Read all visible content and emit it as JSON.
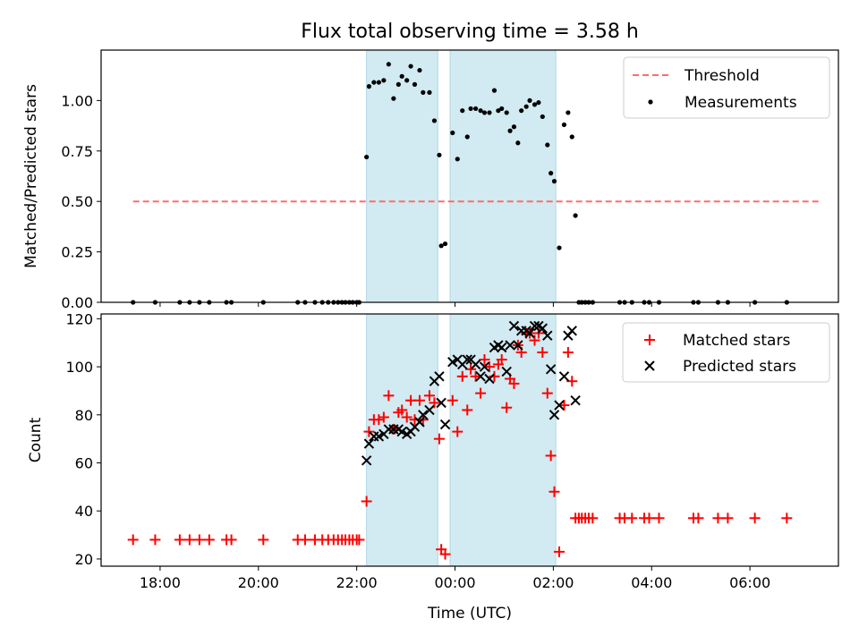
{
  "chart_data": {
    "title": "Flux total observing time = 3.58 h",
    "x_unit": "hours (UTC, 24 = 00:00 next day)",
    "xlim": [
      16.8,
      31.8
    ],
    "x_ticks": [
      {
        "value": 18,
        "label": "18:00"
      },
      {
        "value": 20,
        "label": "20:00"
      },
      {
        "value": 22,
        "label": "22:00"
      },
      {
        "value": 24,
        "label": "00:00"
      },
      {
        "value": 26,
        "label": "02:00"
      },
      {
        "value": 28,
        "label": "04:00"
      },
      {
        "value": 30,
        "label": "06:00"
      }
    ],
    "xlabel": "Time (UTC)",
    "shaded_intervals": [
      [
        22.2,
        23.65
      ],
      [
        23.9,
        26.05
      ]
    ],
    "shade_color": "#add8e6",
    "panels": [
      {
        "type": "scatter",
        "ylabel": "Matched/Predicted stars",
        "ylim": [
          0,
          1.25
        ],
        "y_ticks": [
          {
            "value": 0,
            "label": "0.00"
          },
          {
            "value": 0.25,
            "label": "0.25"
          },
          {
            "value": 0.5,
            "label": "0.50"
          },
          {
            "value": 0.75,
            "label": "0.75"
          },
          {
            "value": 1.0,
            "label": "1.00"
          }
        ],
        "legend_position": "top-right",
        "threshold": {
          "name": "Threshold",
          "value": 0.5,
          "x_range": [
            17.45,
            31.4
          ],
          "color": "#ff6b6b"
        },
        "series": [
          {
            "name": "Measurements",
            "color": "#000000",
            "marker": "dot",
            "points": [
              [
                17.45,
                0
              ],
              [
                17.9,
                0
              ],
              [
                18.4,
                0
              ],
              [
                18.6,
                0
              ],
              [
                18.8,
                0
              ],
              [
                19.0,
                0
              ],
              [
                19.35,
                0
              ],
              [
                19.45,
                0
              ],
              [
                20.1,
                0
              ],
              [
                20.8,
                0
              ],
              [
                20.95,
                0
              ],
              [
                21.15,
                0
              ],
              [
                21.3,
                0
              ],
              [
                21.42,
                0
              ],
              [
                21.53,
                0
              ],
              [
                21.62,
                0
              ],
              [
                21.7,
                0
              ],
              [
                21.77,
                0
              ],
              [
                21.85,
                0
              ],
              [
                21.92,
                0
              ],
              [
                22.0,
                0
              ],
              [
                22.05,
                0
              ],
              [
                22.2,
                0.72
              ],
              [
                22.25,
                1.07
              ],
              [
                22.35,
                1.09
              ],
              [
                22.45,
                1.09
              ],
              [
                22.55,
                1.1
              ],
              [
                22.65,
                1.18
              ],
              [
                22.75,
                1.01
              ],
              [
                22.85,
                1.08
              ],
              [
                22.92,
                1.12
              ],
              [
                23.02,
                1.1
              ],
              [
                23.1,
                1.17
              ],
              [
                23.18,
                1.08
              ],
              [
                23.28,
                1.15
              ],
              [
                23.35,
                1.04
              ],
              [
                23.48,
                1.04
              ],
              [
                23.58,
                0.9
              ],
              [
                23.68,
                0.73
              ],
              [
                23.72,
                0.28
              ],
              [
                23.8,
                0.29
              ],
              [
                23.95,
                0.84
              ],
              [
                24.05,
                0.71
              ],
              [
                24.15,
                0.95
              ],
              [
                24.25,
                0.82
              ],
              [
                24.32,
                0.96
              ],
              [
                24.42,
                0.96
              ],
              [
                24.52,
                0.95
              ],
              [
                24.6,
                0.94
              ],
              [
                24.7,
                0.94
              ],
              [
                24.8,
                1.05
              ],
              [
                24.88,
                0.95
              ],
              [
                24.95,
                0.96
              ],
              [
                25.05,
                0.94
              ],
              [
                25.12,
                0.85
              ],
              [
                25.2,
                0.87
              ],
              [
                25.28,
                0.79
              ],
              [
                25.35,
                0.95
              ],
              [
                25.45,
                0.97
              ],
              [
                25.52,
                1.0
              ],
              [
                25.62,
                0.98
              ],
              [
                25.7,
                0.99
              ],
              [
                25.78,
                0.92
              ],
              [
                25.88,
                0.78
              ],
              [
                25.95,
                0.64
              ],
              [
                26.02,
                0.6
              ],
              [
                26.12,
                0.27
              ],
              [
                26.22,
                0.88
              ],
              [
                26.3,
                0.94
              ],
              [
                26.38,
                0.82
              ],
              [
                26.45,
                0.43
              ],
              [
                26.52,
                0
              ],
              [
                26.58,
                0
              ],
              [
                26.65,
                0
              ],
              [
                26.72,
                0
              ],
              [
                26.8,
                0
              ],
              [
                27.35,
                0
              ],
              [
                27.45,
                0
              ],
              [
                27.6,
                0
              ],
              [
                27.85,
                0
              ],
              [
                27.95,
                0
              ],
              [
                28.15,
                0
              ],
              [
                28.85,
                0
              ],
              [
                28.95,
                0
              ],
              [
                29.35,
                0
              ],
              [
                29.55,
                0
              ],
              [
                30.1,
                0
              ],
              [
                30.75,
                0
              ]
            ]
          }
        ]
      },
      {
        "type": "scatter",
        "ylabel": "Count",
        "ylim": [
          17,
          122
        ],
        "y_ticks": [
          {
            "value": 20,
            "label": "20"
          },
          {
            "value": 40,
            "label": "40"
          },
          {
            "value": 60,
            "label": "60"
          },
          {
            "value": 80,
            "label": "80"
          },
          {
            "value": 100,
            "label": "100"
          },
          {
            "value": 120,
            "label": "120"
          }
        ],
        "legend_position": "top-right",
        "series": [
          {
            "name": "Matched stars",
            "color": "#ff0000",
            "marker": "plus",
            "points": [
              [
                17.45,
                28
              ],
              [
                17.9,
                28
              ],
              [
                18.4,
                28
              ],
              [
                18.6,
                28
              ],
              [
                18.8,
                28
              ],
              [
                19.0,
                28
              ],
              [
                19.35,
                28
              ],
              [
                19.45,
                28
              ],
              [
                20.1,
                28
              ],
              [
                20.8,
                28
              ],
              [
                20.95,
                28
              ],
              [
                21.15,
                28
              ],
              [
                21.3,
                28
              ],
              [
                21.42,
                28
              ],
              [
                21.53,
                28
              ],
              [
                21.62,
                28
              ],
              [
                21.7,
                28
              ],
              [
                21.77,
                28
              ],
              [
                21.85,
                28
              ],
              [
                21.92,
                28
              ],
              [
                22.0,
                28
              ],
              [
                22.05,
                28
              ],
              [
                22.2,
                44
              ],
              [
                22.25,
                73
              ],
              [
                22.35,
                78
              ],
              [
                22.45,
                78
              ],
              [
                22.55,
                79
              ],
              [
                22.65,
                88
              ],
              [
                22.75,
                74
              ],
              [
                22.85,
                81
              ],
              [
                22.92,
                82
              ],
              [
                23.02,
                79
              ],
              [
                23.1,
                86
              ],
              [
                23.18,
                78
              ],
              [
                23.28,
                86
              ],
              [
                23.35,
                78
              ],
              [
                23.48,
                88
              ],
              [
                23.58,
                85
              ],
              [
                23.68,
                70
              ],
              [
                23.72,
                24
              ],
              [
                23.8,
                22
              ],
              [
                23.95,
                86
              ],
              [
                24.05,
                73
              ],
              [
                24.15,
                96
              ],
              [
                24.25,
                82
              ],
              [
                24.32,
                99
              ],
              [
                24.42,
                96
              ],
              [
                24.52,
                89
              ],
              [
                24.6,
                103
              ],
              [
                24.7,
                100
              ],
              [
                24.8,
                96
              ],
              [
                24.88,
                101
              ],
              [
                24.95,
                103
              ],
              [
                25.05,
                83
              ],
              [
                25.12,
                95
              ],
              [
                25.2,
                93
              ],
              [
                25.28,
                109
              ],
              [
                25.35,
                106
              ],
              [
                25.45,
                114
              ],
              [
                25.52,
                114
              ],
              [
                25.62,
                111
              ],
              [
                25.7,
                114
              ],
              [
                25.78,
                106
              ],
              [
                25.88,
                89
              ],
              [
                25.95,
                63
              ],
              [
                26.02,
                48
              ],
              [
                26.12,
                23
              ],
              [
                26.22,
                84
              ],
              [
                26.3,
                106
              ],
              [
                26.38,
                94
              ],
              [
                26.45,
                37
              ],
              [
                26.52,
                37
              ],
              [
                26.58,
                37
              ],
              [
                26.65,
                37
              ],
              [
                26.72,
                37
              ],
              [
                26.8,
                37
              ],
              [
                27.35,
                37
              ],
              [
                27.45,
                37
              ],
              [
                27.6,
                37
              ],
              [
                27.85,
                37
              ],
              [
                27.95,
                37
              ],
              [
                28.15,
                37
              ],
              [
                28.85,
                37
              ],
              [
                28.95,
                37
              ],
              [
                29.35,
                37
              ],
              [
                29.55,
                37
              ],
              [
                30.1,
                37
              ],
              [
                30.75,
                37
              ]
            ]
          },
          {
            "name": "Predicted stars",
            "color": "#000000",
            "marker": "x",
            "points": [
              [
                22.2,
                61
              ],
              [
                22.25,
                68
              ],
              [
                22.35,
                71
              ],
              [
                22.45,
                71
              ],
              [
                22.55,
                72
              ],
              [
                22.65,
                74
              ],
              [
                22.75,
                74
              ],
              [
                22.85,
                74
              ],
              [
                22.92,
                73
              ],
              [
                23.02,
                72
              ],
              [
                23.1,
                73
              ],
              [
                23.18,
                75
              ],
              [
                23.28,
                77
              ],
              [
                23.35,
                80
              ],
              [
                23.48,
                82
              ],
              [
                23.58,
                94
              ],
              [
                23.68,
                96
              ],
              [
                23.72,
                85
              ],
              [
                23.8,
                76
              ],
              [
                23.95,
                102
              ],
              [
                24.05,
                103
              ],
              [
                24.15,
                101
              ],
              [
                24.25,
                103
              ],
              [
                24.32,
                103
              ],
              [
                24.42,
                101
              ],
              [
                24.52,
                96
              ],
              [
                24.6,
                100
              ],
              [
                24.7,
                95
              ],
              [
                24.8,
                108
              ],
              [
                24.88,
                109
              ],
              [
                24.95,
                108
              ],
              [
                25.05,
                98
              ],
              [
                25.12,
                109
              ],
              [
                25.2,
                117
              ],
              [
                25.28,
                109
              ],
              [
                25.35,
                115
              ],
              [
                25.45,
                115
              ],
              [
                25.52,
                114
              ],
              [
                25.62,
                117
              ],
              [
                25.7,
                117
              ],
              [
                25.78,
                116
              ],
              [
                25.88,
                113
              ],
              [
                25.95,
                99
              ],
              [
                26.02,
                80
              ],
              [
                26.12,
                84
              ],
              [
                26.22,
                96
              ],
              [
                26.3,
                113
              ],
              [
                26.38,
                115
              ],
              [
                26.45,
                86
              ]
            ]
          }
        ]
      }
    ]
  }
}
